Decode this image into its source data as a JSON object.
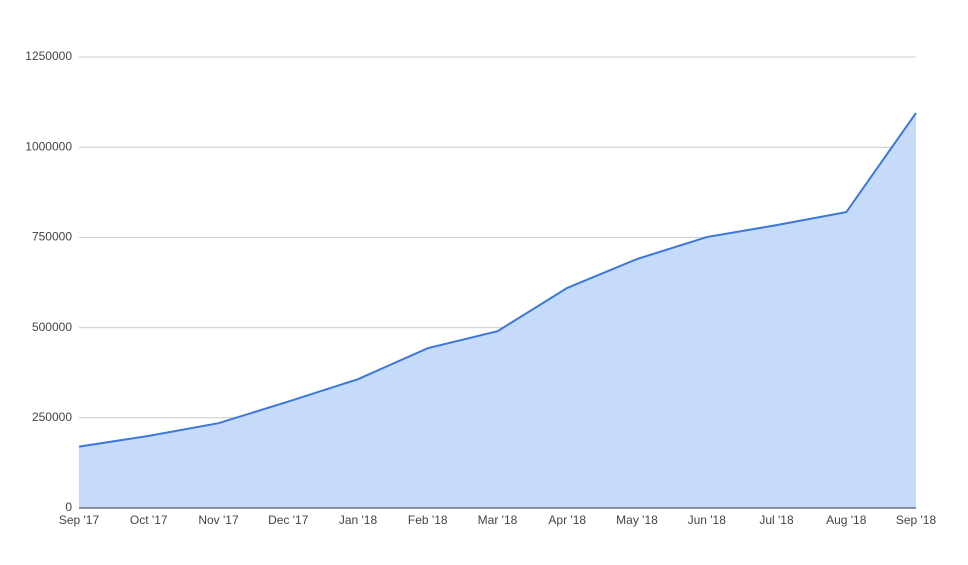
{
  "chart_data": {
    "type": "area",
    "categories": [
      "Sep '17",
      "Oct '17",
      "Nov '17",
      "Dec '17",
      "Jan '18",
      "Feb '18",
      "Mar '18",
      "Apr '18",
      "May '18",
      "Jun '18",
      "Jul '18",
      "Aug '18",
      "Sep '18"
    ],
    "values": [
      170000,
      200000,
      235000,
      295000,
      357000,
      443000,
      490000,
      610000,
      690000,
      751000,
      784000,
      820000,
      1095000
    ],
    "color": "#3c78d8",
    "fill": "#c6dafa",
    "ylim": [
      0,
      1250000
    ],
    "yticks": [
      0,
      250000,
      500000,
      750000,
      1000000,
      1250000
    ],
    "grid": true
  }
}
